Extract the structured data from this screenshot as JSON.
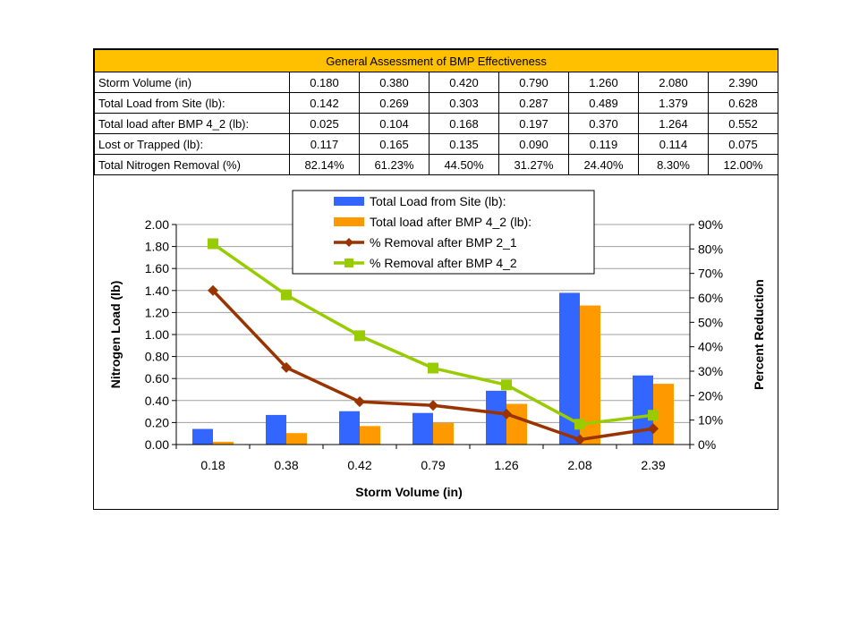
{
  "table": {
    "title": "General Assessment of BMP Effectiveness",
    "rows": [
      {
        "label": "Storm Volume (in)",
        "values": [
          "0.180",
          "0.380",
          "0.420",
          "0.790",
          "1.260",
          "2.080",
          "2.390"
        ]
      },
      {
        "label": "Total Load from Site (lb):",
        "values": [
          "0.142",
          "0.269",
          "0.303",
          "0.287",
          "0.489",
          "1.379",
          "0.628"
        ]
      },
      {
        "label": "Total load after BMP 4_2 (lb):",
        "values": [
          "0.025",
          "0.104",
          "0.168",
          "0.197",
          "0.370",
          "1.264",
          "0.552"
        ]
      },
      {
        "label": "Lost or Trapped (lb):",
        "values": [
          "0.117",
          "0.165",
          "0.135",
          "0.090",
          "0.119",
          "0.114",
          "0.075"
        ]
      },
      {
        "label": "Total Nitrogen Removal (%)",
        "values": [
          "82.14%",
          "61.23%",
          "44.50%",
          "31.27%",
          "24.40%",
          "8.30%",
          "12.00%"
        ]
      }
    ]
  },
  "chart_data": {
    "type": "bar",
    "categories": [
      "0.18",
      "0.38",
      "0.42",
      "0.79",
      "1.26",
      "2.08",
      "2.39"
    ],
    "xlabel": "Storm Volume (in)",
    "ylabel": "Nitrogen Load (lb)",
    "y2label": "Percent Reduction",
    "ylim": [
      0,
      2.0
    ],
    "y_ticks": [
      "0.00",
      "0.20",
      "0.40",
      "0.60",
      "0.80",
      "1.00",
      "1.20",
      "1.40",
      "1.60",
      "1.80",
      "2.00"
    ],
    "y2lim": [
      0,
      90
    ],
    "y2_ticks": [
      "0%",
      "10%",
      "20%",
      "30%",
      "40%",
      "50%",
      "60%",
      "70%",
      "80%",
      "90%"
    ],
    "grid": true,
    "legend_position": "top-center",
    "series": [
      {
        "name": "Total Load from Site (lb):",
        "type": "bar",
        "axis": "left",
        "color": "#3366ff",
        "values": [
          0.142,
          0.269,
          0.303,
          0.287,
          0.489,
          1.379,
          0.628
        ]
      },
      {
        "name": "Total load after BMP 4_2 (lb):",
        "type": "bar",
        "axis": "left",
        "color": "#ff9900",
        "values": [
          0.025,
          0.104,
          0.168,
          0.197,
          0.37,
          1.264,
          0.552
        ]
      },
      {
        "name": "% Removal after BMP 2_1",
        "type": "line",
        "axis": "right",
        "marker": "diamond",
        "color": "#993300",
        "values": [
          63,
          31.5,
          17.5,
          16,
          12.5,
          2,
          6.5
        ]
      },
      {
        "name": "% Removal after BMP 4_2",
        "type": "line",
        "axis": "right",
        "marker": "square",
        "color": "#99cc00",
        "values": [
          82.14,
          61.23,
          44.5,
          31.27,
          24.4,
          8.3,
          12.0
        ]
      }
    ]
  }
}
